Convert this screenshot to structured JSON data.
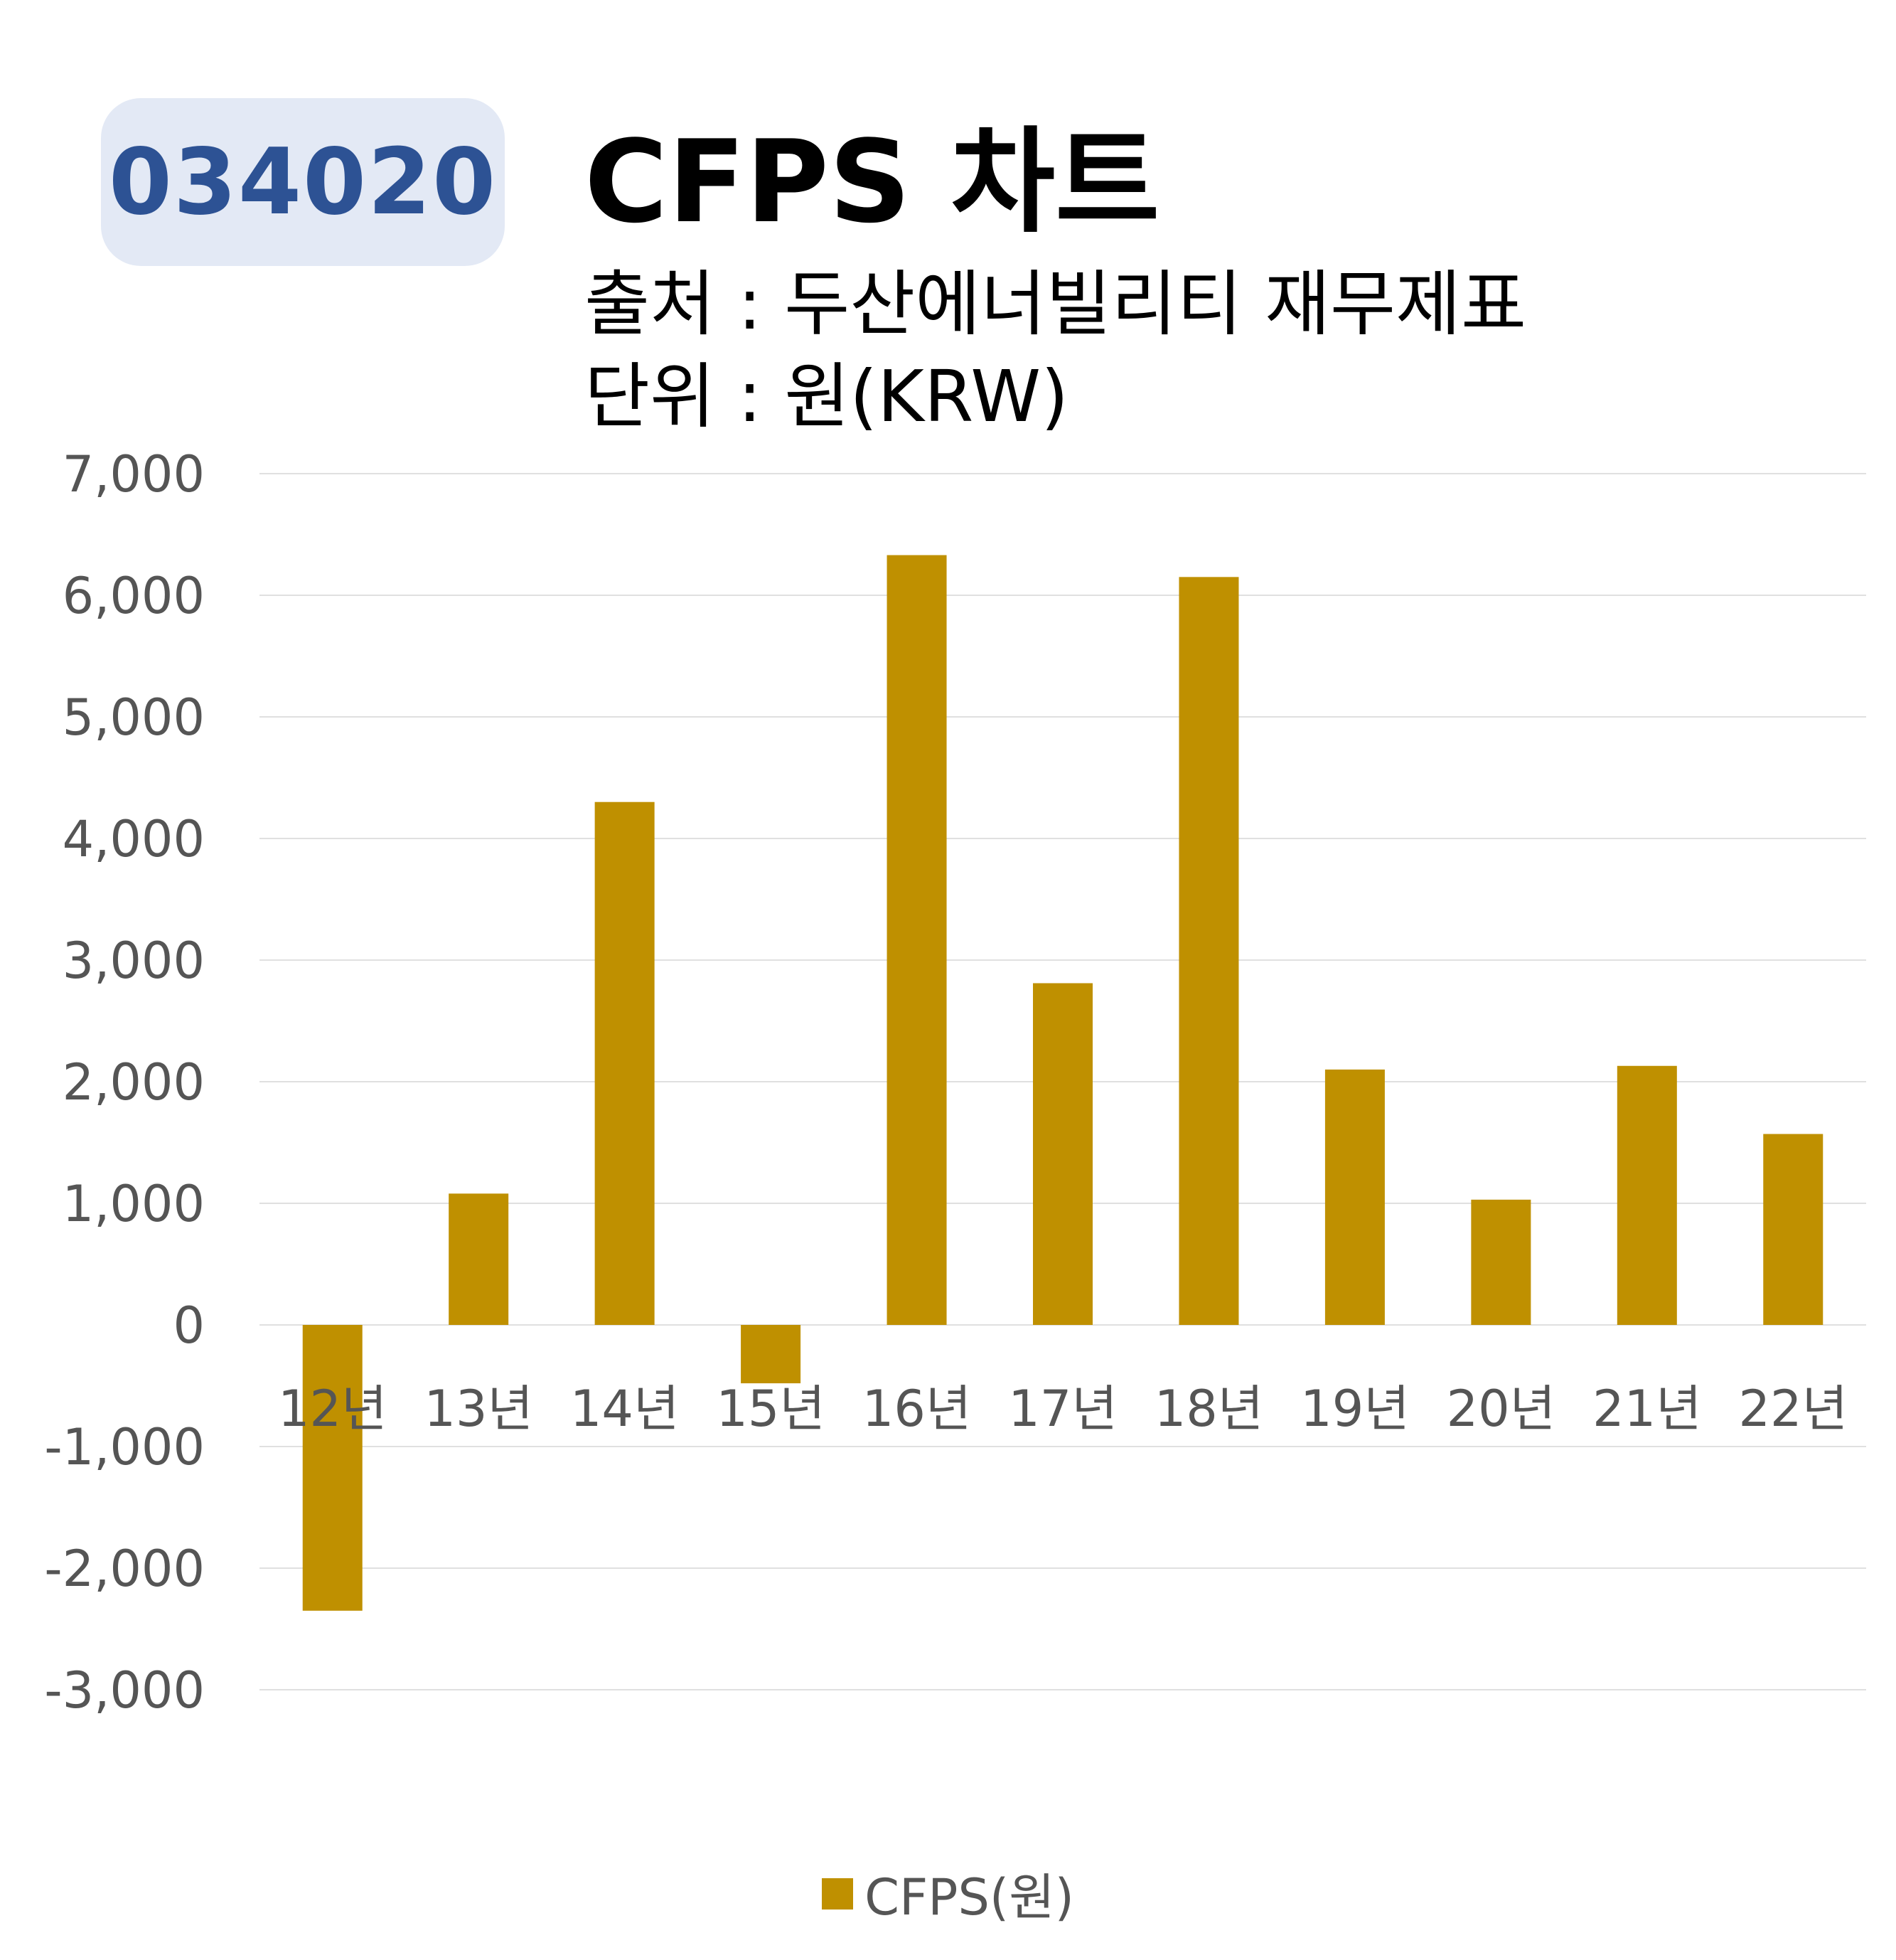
{
  "badge": {
    "code": "034020"
  },
  "header": {
    "title": "CFPS 차트",
    "source": "출처 : 두산에너빌리티 재무제표",
    "unit": "단위 : 원(KRW)"
  },
  "colors": {
    "bar": "#bf9000",
    "badge_bg": "#e3e9f5",
    "badge_text": "#2d5294",
    "grid": "#e0e0e0"
  },
  "chart_data": {
    "type": "bar",
    "title": "CFPS 차트",
    "xlabel": "",
    "ylabel": "",
    "categories": [
      "12년",
      "13년",
      "14년",
      "15년",
      "16년",
      "17년",
      "18년",
      "19년",
      "20년",
      "21년",
      "22년"
    ],
    "series": [
      {
        "name": "CFPS(원)",
        "values": [
          -2350,
          1080,
          4300,
          -480,
          6330,
          2810,
          6150,
          2100,
          1030,
          2130,
          1570
        ]
      }
    ],
    "ylim": [
      -3000,
      7000
    ],
    "yticks": [
      7000,
      6000,
      5000,
      4000,
      3000,
      2000,
      1000,
      0,
      -1000,
      -2000,
      -3000
    ],
    "ytick_labels": [
      "7,000",
      "6,000",
      "5,000",
      "4,000",
      "3,000",
      "2,000",
      "1,000",
      "0",
      "-1,000",
      "-2,000",
      "-3,000"
    ],
    "grid": true,
    "legend_position": "bottom"
  }
}
